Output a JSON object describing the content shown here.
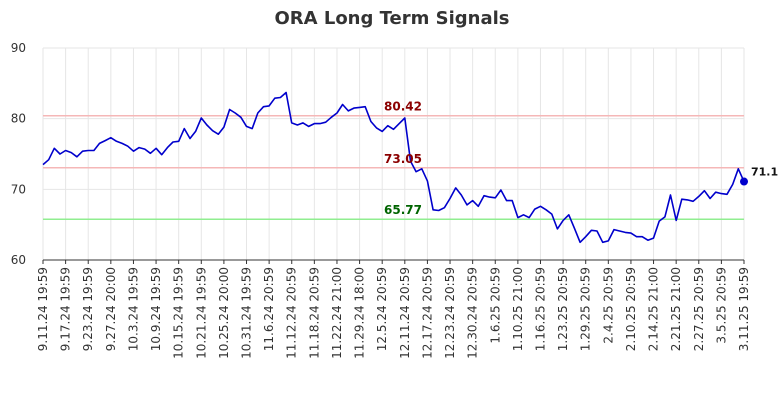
{
  "title": "ORA Long Term Signals",
  "colors": {
    "line": "#0000cc",
    "resistance": "#8b0000",
    "resistance_line": "#f5b7b7",
    "support": "#006400",
    "support_line": "#90ee90",
    "grid": "#e6e6e6",
    "axis": "#333333"
  },
  "chart_data": {
    "type": "line",
    "title": "ORA Long Term Signals",
    "xlabel": "",
    "ylabel": "",
    "ylim": [
      60,
      90
    ],
    "yticks": [
      60,
      70,
      80,
      90
    ],
    "grid": true,
    "x_tick_labels": [
      "9.11.24 19:59",
      "9.17.24 19:59",
      "9.23.24 19:59",
      "9.27.24 20:00",
      "10.3.24 19:59",
      "10.9.24 19:59",
      "10.15.24 19:59",
      "10.21.24 19:59",
      "10.25.24 20:00",
      "10.31.24 19:59",
      "11.6.24 20:59",
      "11.12.24 20:59",
      "11.18.24 20:59",
      "11.22.24 21:00",
      "11.29.24 18:00",
      "12.5.24 20:59",
      "12.11.24 20:59",
      "12.17.24 20:59",
      "12.23.24 20:59",
      "12.30.24 20:59",
      "1.6.25 20:59",
      "1.10.25 21:00",
      "1.16.25 20:59",
      "1.23.25 20:59",
      "1.29.25 20:59",
      "2.4.25 20:59",
      "2.10.25 20:59",
      "2.14.25 21:00",
      "2.21.25 21:00",
      "2.27.25 20:59",
      "3.5.25 20:59",
      "3.11.25 19:59"
    ],
    "reference_lines": [
      {
        "label": "80.42",
        "value": 80.42,
        "kind": "resistance"
      },
      {
        "label": "73.05",
        "value": 73.05,
        "kind": "resistance"
      },
      {
        "label": "65.77",
        "value": 65.77,
        "kind": "support"
      }
    ],
    "last_value_label": "71.1",
    "series": [
      {
        "values": [
          73.5,
          74.2,
          75.8,
          75.0,
          75.5,
          75.2,
          74.6,
          75.4,
          75.5,
          75.5,
          76.5,
          76.9,
          77.3,
          76.8,
          76.5,
          76.1,
          75.4,
          75.9,
          75.7,
          75.1,
          75.8,
          74.9,
          75.9,
          76.7,
          76.8,
          78.6,
          77.2,
          78.2,
          80.1,
          79.1,
          78.3,
          77.8,
          78.8,
          81.3,
          80.8,
          80.2,
          78.9,
          78.6,
          80.8,
          81.7,
          81.8,
          82.9,
          83.0,
          83.7,
          79.4,
          79.1,
          79.4,
          78.9,
          79.3,
          79.3,
          79.5,
          80.2,
          80.8,
          82.0,
          81.1,
          81.5,
          81.6,
          81.7,
          79.6,
          78.7,
          78.2,
          79.0,
          78.5,
          79.3,
          80.1,
          74.0,
          72.5,
          72.9,
          71.2,
          67.1,
          67.0,
          67.4,
          68.7,
          70.2,
          69.2,
          67.8,
          68.4,
          67.6,
          69.1,
          68.9,
          68.8,
          69.9,
          68.4,
          68.4,
          66.0,
          66.4,
          66.0,
          67.2,
          67.6,
          67.1,
          66.5,
          64.4,
          65.6,
          66.4,
          64.5,
          62.5,
          63.3,
          64.2,
          64.1,
          62.5,
          62.7,
          64.3,
          64.1,
          63.9,
          63.8,
          63.3,
          63.3,
          62.8,
          63.1,
          65.5,
          66.1,
          69.2,
          65.6,
          68.6,
          68.5,
          68.3,
          69.0,
          69.8,
          68.7,
          69.6,
          69.4,
          69.3,
          70.7,
          72.9,
          71.1
        ]
      }
    ]
  }
}
